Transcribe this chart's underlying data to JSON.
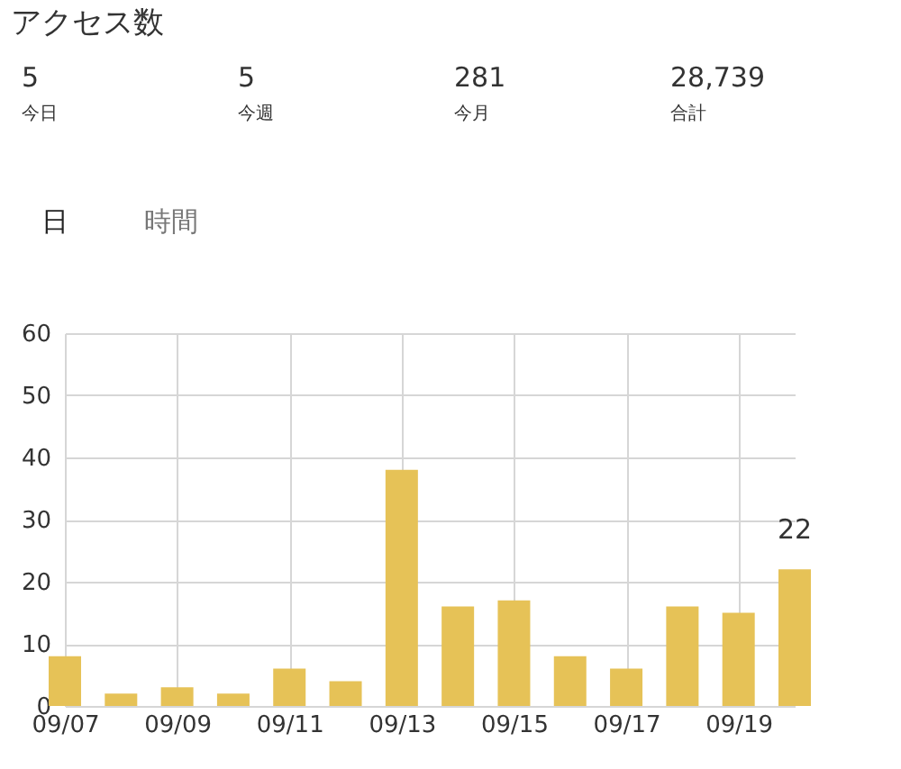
{
  "chart_data": {
    "type": "bar",
    "title": "アクセス数",
    "annotations": [
      "5",
      "今日",
      "5",
      "今週",
      "281",
      "今月",
      "28,739",
      "合計",
      "日",
      "時間"
    ],
    "categories": [
      "09/07",
      null,
      "09/09",
      null,
      "09/11",
      null,
      "09/13",
      null,
      "09/15",
      null,
      "09/17",
      null,
      "09/19",
      null
    ],
    "values": [
      8,
      2,
      3,
      2,
      6,
      4,
      38,
      16,
      17,
      8,
      6,
      16,
      15,
      22
    ],
    "value_labels": [
      null,
      null,
      null,
      null,
      null,
      null,
      null,
      null,
      null,
      null,
      null,
      null,
      null,
      "22"
    ],
    "color": "#e6c257",
    "ylim": [
      0,
      60
    ],
    "yticks": [
      0,
      10,
      20,
      30,
      40,
      50,
      60
    ],
    "grid": true
  }
}
